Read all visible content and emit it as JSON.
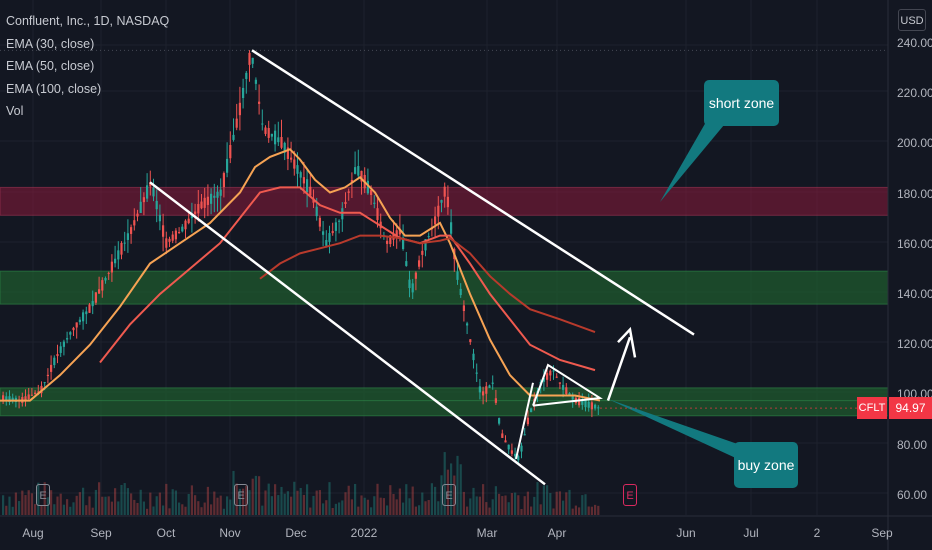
{
  "header": {
    "title": "Confluent, Inc., 1D, NASDAQ",
    "indicators": [
      "EMA (30, close)",
      "EMA (50, close)",
      "EMA (100, close)",
      "Vol"
    ]
  },
  "price_axis": {
    "currency": "USD",
    "ticks": [
      "240.00",
      "220.00",
      "200.00",
      "180.00",
      "160.00",
      "140.00",
      "120.00",
      "100.00",
      "80.00",
      "60.00"
    ]
  },
  "time_axis": {
    "ticks": [
      "Aug",
      "Sep",
      "Oct",
      "Nov",
      "Dec",
      "2022",
      "Mar",
      "Apr",
      "Jun",
      "Jul",
      "2",
      "Sep"
    ]
  },
  "price_tag": {
    "symbol": "CFLT",
    "last_price": "94.97"
  },
  "annotations": {
    "short_zone_label": "short zone",
    "buy_zone_label": "buy zone"
  },
  "earnings_markers": {
    "label": "E"
  },
  "colors": {
    "background": "#131722",
    "candle_up": "#26a69a",
    "candle_down": "#ef5350",
    "ema_30": "#f6a354",
    "ema_50": "#ef5a4f",
    "ema_100": "#b83a2c",
    "short_zone_fill": "#8b1a3a",
    "green_zone_fill": "#1f5a2e",
    "callout": "#12797f",
    "price_tag": "#f23645"
  }
}
